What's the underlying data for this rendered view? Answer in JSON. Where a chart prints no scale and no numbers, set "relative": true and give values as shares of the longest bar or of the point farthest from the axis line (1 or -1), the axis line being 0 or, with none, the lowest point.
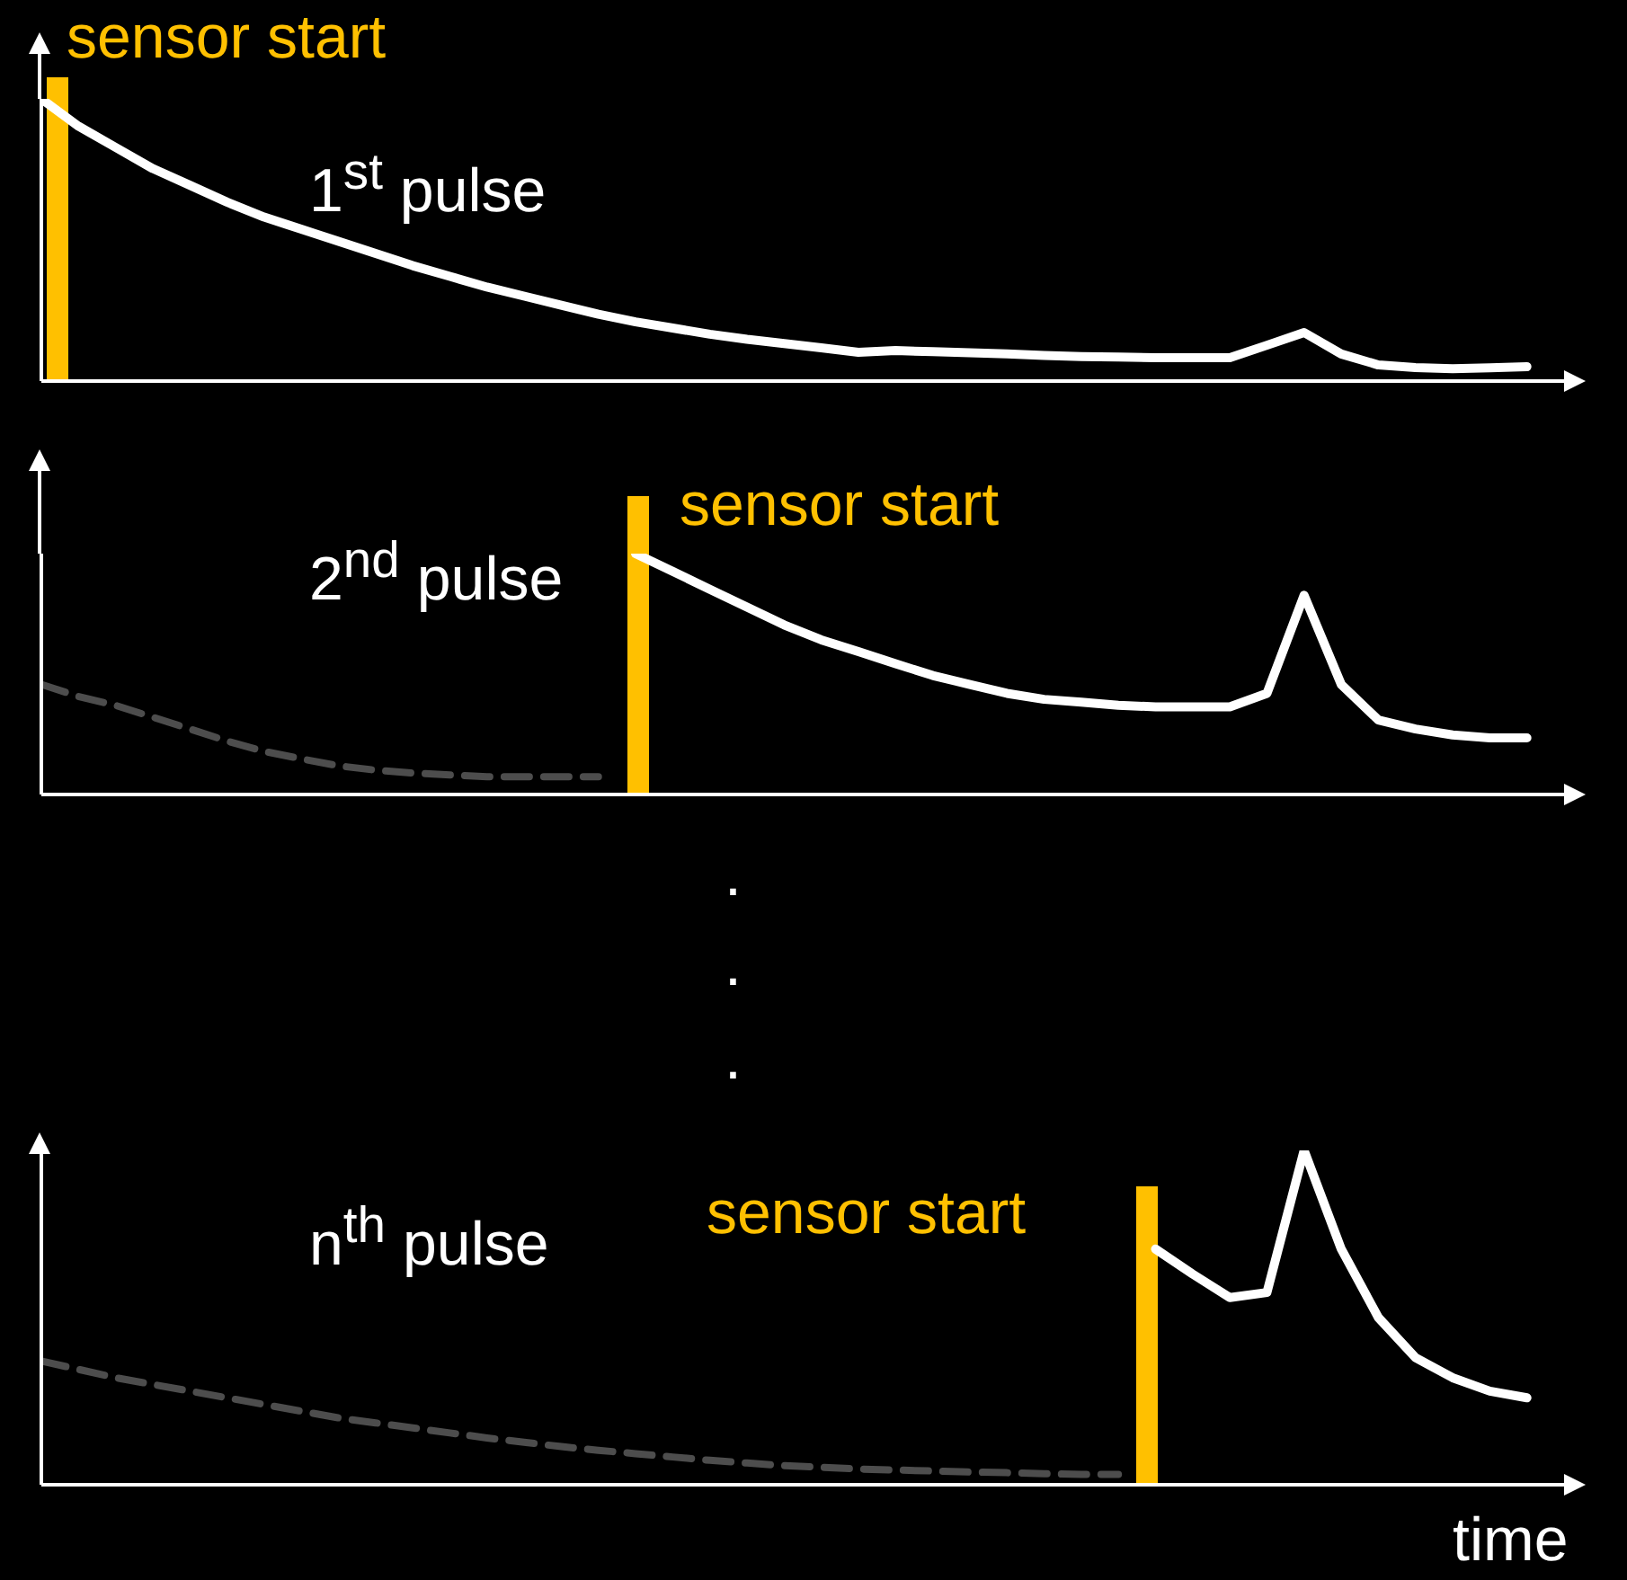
{
  "chart_data": [
    {
      "type": "line",
      "relative": true,
      "categories": [
        null,
        null,
        null,
        null,
        null,
        null,
        null,
        null,
        null,
        null,
        null,
        null,
        null,
        null,
        null,
        null,
        null,
        null,
        null,
        null,
        null,
        null,
        null,
        null,
        null,
        null,
        null,
        null,
        null,
        null,
        null,
        null,
        null,
        null,
        null,
        null,
        null,
        null,
        null,
        null,
        null,
        null
      ],
      "series": [
        {
          "color": "#ffffff",
          "line_style": "solid",
          "values": [
            1,
            0.903,
            0.828,
            0.753,
            0.694,
            0.634,
            0.581,
            0.538,
            0.495,
            0.452,
            0.409,
            0.371,
            0.333,
            0.301,
            0.269,
            0.237,
            0.21,
            0.188,
            0.166,
            0.148,
            0.133,
            0.118,
            0.102,
            0.108,
            0.104,
            0.1,
            0.096,
            0.091,
            0.087,
            0.085,
            0.083,
            0.083,
            0.083,
            0.127,
            0.172,
            0.096,
            0.057,
            0.048,
            0.044,
            0.047,
            0.051,
            null
          ]
        }
      ],
      "annotations": [
        "sensor start",
        "1$^{st}$ pulse"
      ]
    },
    {
      "type": "line",
      "relative": true,
      "categories": [
        null,
        null,
        null,
        null,
        null,
        null,
        null,
        null,
        null,
        null,
        null,
        null,
        null,
        null,
        null,
        null,
        null,
        null,
        null,
        null,
        null,
        null,
        null,
        null,
        null,
        null,
        null,
        null,
        null,
        null,
        null,
        null,
        null,
        null,
        null,
        null,
        null,
        null,
        null,
        null,
        null,
        null
      ],
      "series": [
        {
          "color": "#4d4d4d",
          "line_style": "dashed",
          "values": [
            0.457,
            0.407,
            0.37,
            0.321,
            0.272,
            0.222,
            0.179,
            0.148,
            0.119,
            0.101,
            0.089,
            0.081,
            0.074,
            0.074,
            0.074,
            0.074,
            null,
            null,
            null,
            null,
            null,
            null,
            null,
            null,
            null,
            null,
            null,
            null,
            null,
            null,
            null,
            null,
            null,
            null,
            null,
            null,
            null,
            null,
            null,
            null,
            null,
            null
          ]
        },
        {
          "color": "#ffffff",
          "line_style": "solid",
          "values": [
            null,
            null,
            null,
            null,
            null,
            null,
            null,
            null,
            null,
            null,
            null,
            null,
            null,
            null,
            null,
            null,
            1,
            0.926,
            0.852,
            0.778,
            0.704,
            0.642,
            0.593,
            0.543,
            0.494,
            0.457,
            0.42,
            0.395,
            0.383,
            0.37,
            0.364,
            0.364,
            0.364,
            0.42,
            0.827,
            0.457,
            0.309,
            0.272,
            0.247,
            0.235,
            0.235,
            null
          ]
        }
      ],
      "annotations": [
        "sensor start",
        "2$^{nd}$ pulse",
        ".",
        ".",
        "."
      ]
    },
    {
      "type": "line",
      "relative": true,
      "xlabel": "time",
      "categories": [
        null,
        null,
        null,
        null,
        null,
        null,
        null,
        null,
        null,
        null,
        null,
        null,
        null,
        null,
        null,
        null,
        null,
        null,
        null,
        null,
        null,
        null,
        null,
        null,
        null,
        null,
        null,
        null,
        null,
        null,
        null,
        null,
        null,
        null,
        null,
        null,
        null,
        null,
        null,
        null,
        null,
        null
      ],
      "series": [
        {
          "color": "#4d4d4d",
          "line_style": "dashed",
          "values": [
            0.37,
            0.345,
            0.32,
            0.3,
            0.28,
            0.26,
            0.24,
            0.22,
            0.2,
            0.185,
            0.17,
            0.155,
            0.14,
            0.127,
            0.114,
            0.103,
            0.093,
            0.083,
            0.073,
            0.065,
            0.057,
            0.052,
            0.047,
            0.044,
            0.041,
            0.038,
            0.036,
            0.033,
            0.031,
            0.031,
            null,
            null,
            null,
            null,
            null,
            null,
            null,
            null,
            null,
            null,
            null,
            null
          ]
        },
        {
          "color": "#ffffff",
          "line_style": "solid",
          "values": [
            null,
            null,
            null,
            null,
            null,
            null,
            null,
            null,
            null,
            null,
            null,
            null,
            null,
            null,
            null,
            null,
            null,
            null,
            null,
            null,
            null,
            null,
            null,
            null,
            null,
            null,
            null,
            null,
            null,
            null,
            0.705,
            0.63,
            0.56,
            0.575,
            1,
            0.705,
            0.5,
            0.38,
            0.32,
            0.28,
            0.26,
            null
          ]
        }
      ],
      "annotations": [
        "sensor start",
        "n$^{th}$ pulse"
      ]
    }
  ]
}
